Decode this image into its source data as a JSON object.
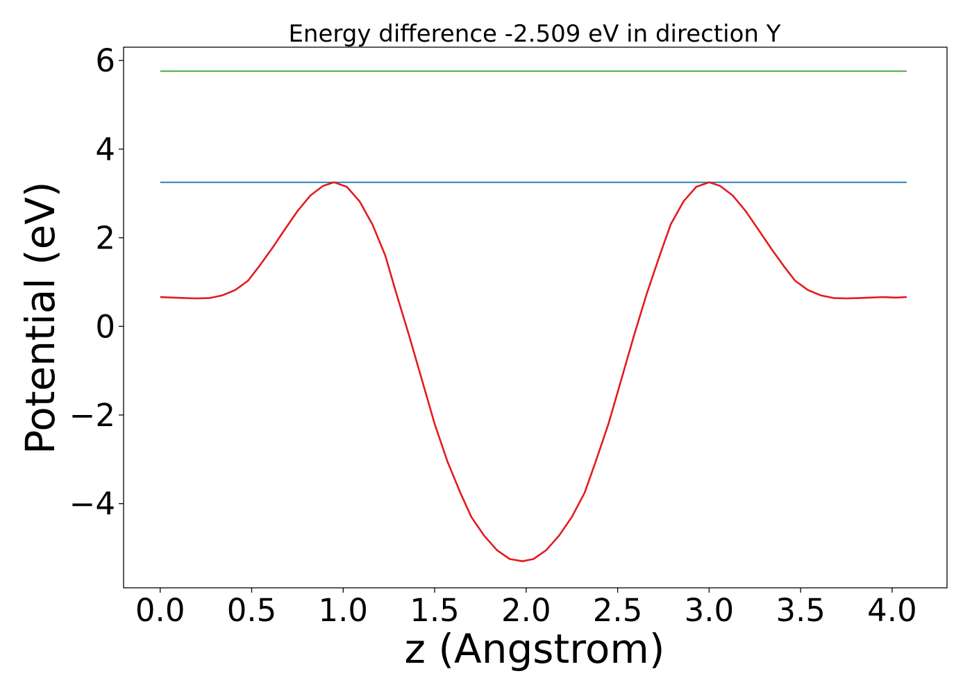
{
  "chart_data": {
    "type": "line",
    "title": "Energy difference -2.509 eV in direction Y",
    "xlabel": "z (Angstrom)",
    "ylabel": "Potential (eV)",
    "xlim": [
      -0.2,
      4.3
    ],
    "ylim": [
      -5.9,
      6.3
    ],
    "xticks": [
      0.0,
      0.5,
      1.0,
      1.5,
      2.0,
      2.5,
      3.0,
      3.5,
      4.0
    ],
    "xtick_labels": [
      "0.0",
      "0.5",
      "1.0",
      "1.5",
      "2.0",
      "2.5",
      "3.0",
      "3.5",
      "4.0"
    ],
    "yticks": [
      -4,
      -2,
      0,
      2,
      4,
      6
    ],
    "ytick_labels": [
      "−4",
      "−2",
      "0",
      "2",
      "4",
      "6"
    ],
    "grid": false,
    "series": [
      {
        "color": "#2ca02c",
        "x": [
          0.0,
          4.08
        ],
        "y": [
          5.76,
          5.76
        ]
      },
      {
        "color": "#1f77b4",
        "x": [
          0.0,
          4.08
        ],
        "y": [
          3.25,
          3.25
        ]
      },
      {
        "color": "#e31a1c",
        "x": [
          0.0,
          0.07,
          0.13,
          0.2,
          0.27,
          0.34,
          0.41,
          0.48,
          0.54,
          0.61,
          0.68,
          0.75,
          0.82,
          0.89,
          0.95,
          1.02,
          1.09,
          1.16,
          1.23,
          1.29,
          1.36,
          1.43,
          1.5,
          1.57,
          1.64,
          1.7,
          1.77,
          1.84,
          1.91,
          1.98,
          2.04,
          2.11,
          2.18,
          2.25,
          2.32,
          2.38,
          2.45,
          2.52,
          2.59,
          2.66,
          2.73,
          2.79,
          2.86,
          2.93,
          3.0,
          3.06,
          3.13,
          3.2,
          3.27,
          3.34,
          3.41,
          3.47,
          3.54,
          3.61,
          3.68,
          3.75,
          3.82,
          3.88,
          3.95,
          4.02,
          4.08
        ],
        "y": [
          0.66,
          0.65,
          0.64,
          0.63,
          0.64,
          0.7,
          0.82,
          1.03,
          1.35,
          1.75,
          2.18,
          2.6,
          2.95,
          3.17,
          3.25,
          3.15,
          2.82,
          2.3,
          1.6,
          0.75,
          -0.2,
          -1.2,
          -2.2,
          -3.05,
          -3.75,
          -4.3,
          -4.72,
          -5.05,
          -5.25,
          -5.3,
          -5.25,
          -5.05,
          -4.72,
          -4.3,
          -3.75,
          -3.05,
          -2.2,
          -1.2,
          -0.2,
          0.75,
          1.6,
          2.3,
          2.82,
          3.15,
          3.25,
          3.17,
          2.95,
          2.6,
          2.18,
          1.75,
          1.35,
          1.03,
          0.82,
          0.7,
          0.64,
          0.63,
          0.64,
          0.65,
          0.66,
          0.65,
          0.66
        ]
      }
    ]
  }
}
